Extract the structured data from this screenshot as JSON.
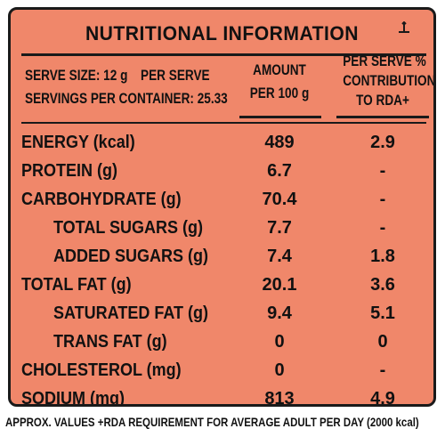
{
  "title": "NUTRITIONAL INFORMATION",
  "header": {
    "serve_size": "SERVE SIZE: 12 g",
    "per_serve": "PER SERVE",
    "servings": "SERVINGS PER CONTAINER: 25.33",
    "amount_line1": "AMOUNT",
    "amount_line2": "PER 100 g",
    "rda_line1": "PER SERVE %",
    "rda_line2": "CONTRIBUTION",
    "rda_line3": "TO RDA+"
  },
  "rows": [
    {
      "name": "ENERGY (kcal)",
      "amount": "489",
      "rda": "2.9",
      "indent": false
    },
    {
      "name": "PROTEIN (g)",
      "amount": "6.7",
      "rda": "-",
      "indent": false
    },
    {
      "name": "CARBOHYDRATE (g)",
      "amount": "70.4",
      "rda": "-",
      "indent": false
    },
    {
      "name": "TOTAL SUGARS (g)",
      "amount": "7.7",
      "rda": "-",
      "indent": true
    },
    {
      "name": "ADDED SUGARS (g)",
      "amount": "7.4",
      "rda": "1.8",
      "indent": true
    },
    {
      "name": "TOTAL FAT (g)",
      "amount": "20.1",
      "rda": "3.6",
      "indent": false
    },
    {
      "name": "SATURATED FAT (g)",
      "amount": "9.4",
      "rda": "5.1",
      "indent": true
    },
    {
      "name": "TRANS FAT (g)",
      "amount": "0",
      "rda": "0",
      "indent": true
    },
    {
      "name": "CHOLESTEROL (mg)",
      "amount": "0",
      "rda": "-",
      "indent": false
    },
    {
      "name": "SODIUM (mg)",
      "amount": "813",
      "rda": "4.9",
      "indent": false
    }
  ],
  "footnote": "APPROX. VALUES  +RDA REQUIREMENT FOR AVERAGE ADULT PER DAY (2000 kcal)",
  "colors": {
    "panel": "#f0876a",
    "ink": "#1a1a1a"
  },
  "icons": {
    "approx_marker": "inverted-t-icon"
  }
}
